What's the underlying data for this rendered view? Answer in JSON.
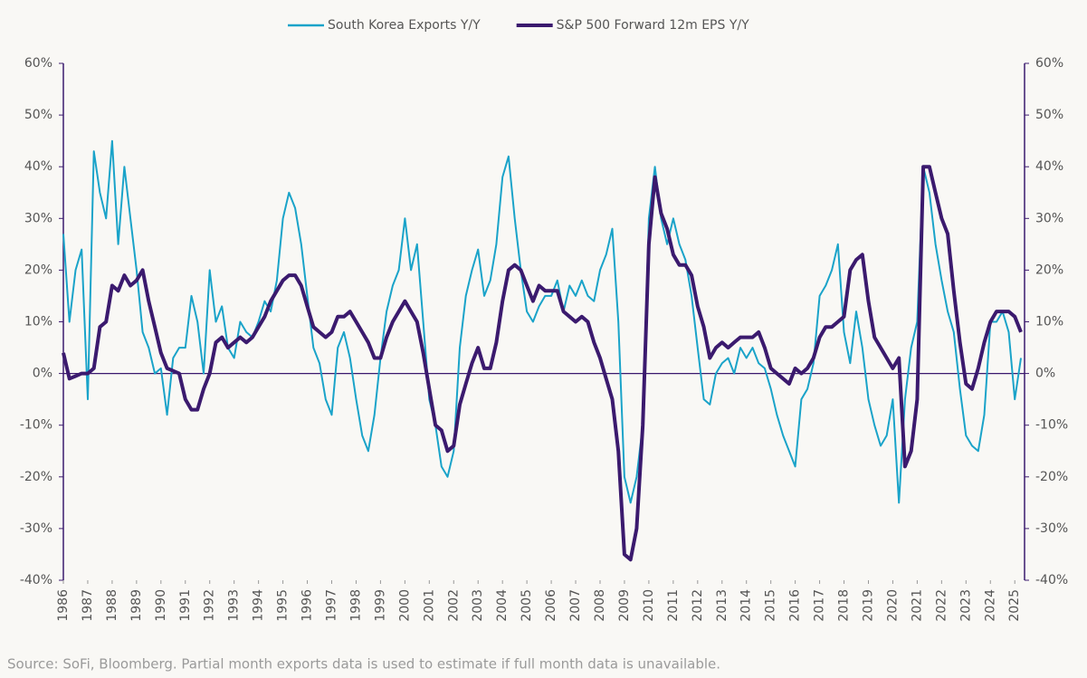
{
  "chart_data": {
    "type": "line",
    "source": "Source: SoFi, Bloomberg. Partial month exports data is used to estimate if full month data is unavailable.",
    "x": [
      1986,
      1986.25,
      1986.5,
      1986.75,
      1987,
      1987.25,
      1987.5,
      1987.75,
      1988,
      1988.25,
      1988.5,
      1988.75,
      1989,
      1989.25,
      1989.5,
      1989.75,
      1990,
      1990.25,
      1990.5,
      1990.75,
      1991,
      1991.25,
      1991.5,
      1991.75,
      1992,
      1992.25,
      1992.5,
      1992.75,
      1993,
      1993.25,
      1993.5,
      1993.75,
      1994,
      1994.25,
      1994.5,
      1994.75,
      1995,
      1995.25,
      1995.5,
      1995.75,
      1996,
      1996.25,
      1996.5,
      1996.75,
      1997,
      1997.25,
      1997.5,
      1997.75,
      1998,
      1998.25,
      1998.5,
      1998.75,
      1999,
      1999.25,
      1999.5,
      1999.75,
      2000,
      2000.25,
      2000.5,
      2000.75,
      2001,
      2001.25,
      2001.5,
      2001.75,
      2002,
      2002.25,
      2002.5,
      2002.75,
      2003,
      2003.25,
      2003.5,
      2003.75,
      2004,
      2004.25,
      2004.5,
      2004.75,
      2005,
      2005.25,
      2005.5,
      2005.75,
      2006,
      2006.25,
      2006.5,
      2006.75,
      2007,
      2007.25,
      2007.5,
      2007.75,
      2008,
      2008.25,
      2008.5,
      2008.75,
      2009,
      2009.25,
      2009.5,
      2009.75,
      2010,
      2010.25,
      2010.5,
      2010.75,
      2011,
      2011.25,
      2011.5,
      2011.75,
      2012,
      2012.25,
      2012.5,
      2012.75,
      2013,
      2013.25,
      2013.5,
      2013.75,
      2014,
      2014.25,
      2014.5,
      2014.75,
      2015,
      2015.25,
      2015.5,
      2015.75,
      2016,
      2016.25,
      2016.5,
      2016.75,
      2017,
      2017.25,
      2017.5,
      2017.75,
      2018,
      2018.25,
      2018.5,
      2018.75,
      2019,
      2019.25,
      2019.5,
      2019.75,
      2020,
      2020.25,
      2020.5,
      2020.75,
      2021,
      2021.25,
      2021.5,
      2021.75,
      2022,
      2022.25,
      2022.5,
      2022.75,
      2023,
      2023.25,
      2023.5,
      2023.75,
      2024,
      2024.25,
      2024.5,
      2024.75,
      2025,
      2025.25
    ],
    "series": [
      {
        "name": "South Korea Exports Y/Y",
        "color": "#1aa3c9",
        "values": [
          27,
          10,
          20,
          24,
          -5,
          43,
          35,
          30,
          45,
          25,
          40,
          30,
          20,
          8,
          5,
          0,
          1,
          -8,
          3,
          5,
          5,
          15,
          10,
          0,
          20,
          10,
          13,
          5,
          3,
          10,
          8,
          7,
          10,
          14,
          12,
          18,
          30,
          35,
          32,
          25,
          15,
          5,
          2,
          -5,
          -8,
          5,
          8,
          3,
          -5,
          -12,
          -15,
          -8,
          3,
          12,
          17,
          20,
          30,
          20,
          25,
          10,
          -5,
          -10,
          -18,
          -20,
          -15,
          5,
          15,
          20,
          24,
          15,
          18,
          25,
          38,
          42,
          30,
          20,
          12,
          10,
          13,
          15,
          15,
          18,
          12,
          17,
          15,
          18,
          15,
          14,
          20,
          23,
          28,
          10,
          -20,
          -25,
          -20,
          -10,
          30,
          40,
          30,
          25,
          30,
          25,
          22,
          15,
          5,
          -5,
          -6,
          0,
          2,
          3,
          0,
          5,
          3,
          5,
          2,
          1,
          -3,
          -8,
          -12,
          -15,
          -18,
          -5,
          -3,
          2,
          15,
          17,
          20,
          25,
          8,
          2,
          12,
          5,
          -5,
          -10,
          -14,
          -12,
          -5,
          -25,
          -5,
          5,
          10,
          40,
          35,
          25,
          18,
          12,
          8,
          -3,
          -12,
          -14,
          -15,
          -8,
          10,
          10,
          12,
          8,
          -5,
          3
        ]
      },
      {
        "name": "S&P 500 Forward 12m EPS Y/Y",
        "color": "#3b1a6e",
        "axis": "y2",
        "values": [
          4,
          -1,
          -0.5,
          0,
          0,
          1,
          9,
          10,
          17,
          16,
          19,
          17,
          18,
          20,
          14,
          9,
          4,
          1,
          0.5,
          0,
          -5,
          -7,
          -7,
          -3,
          0,
          6,
          7,
          5,
          6,
          7,
          6,
          7,
          9,
          11,
          14,
          16,
          18,
          19,
          19,
          17,
          13,
          9,
          8,
          7,
          8,
          11,
          11,
          12,
          10,
          8,
          6,
          3,
          3,
          7,
          10,
          12,
          14,
          12,
          10,
          4,
          -3,
          -10,
          -11,
          -15,
          -14,
          -6,
          -2,
          2,
          5,
          1,
          1,
          6,
          14,
          20,
          21,
          20,
          17,
          14,
          17,
          16,
          16,
          16,
          12,
          11,
          10,
          11,
          10,
          6,
          3,
          -1,
          -5,
          -15,
          -35,
          -36,
          -30,
          -10,
          25,
          38,
          31,
          28,
          23,
          21,
          21,
          19,
          13,
          9,
          3,
          5,
          6,
          5,
          6,
          7,
          7,
          7,
          8,
          5,
          1,
          0,
          -1,
          -2,
          1,
          0,
          1,
          3,
          7,
          9,
          9,
          10,
          11,
          20,
          22,
          23,
          14,
          7,
          5,
          3,
          1,
          3,
          -18,
          -15,
          -5,
          40,
          40,
          35,
          30,
          27,
          16,
          6,
          -2,
          -3,
          1,
          6,
          10,
          12,
          12,
          12,
          11,
          8
        ]
      }
    ],
    "xlim": [
      1986,
      2025.4
    ],
    "xticks": [
      1986,
      1987,
      1988,
      1989,
      1990,
      1991,
      1992,
      1993,
      1994,
      1995,
      1996,
      1997,
      1998,
      1999,
      2000,
      2001,
      2002,
      2003,
      2004,
      2005,
      2006,
      2007,
      2008,
      2009,
      2010,
      2011,
      2012,
      2013,
      2014,
      2015,
      2016,
      2017,
      2018,
      2019,
      2020,
      2021,
      2022,
      2023,
      2024,
      2025
    ],
    "ylim": [
      -40,
      60
    ],
    "yticks": [
      {
        "value": -40,
        "label": "-40%"
      },
      {
        "value": -30,
        "label": "-30%"
      },
      {
        "value": -20,
        "label": "-20%"
      },
      {
        "value": -10,
        "label": "-10%"
      },
      {
        "value": 0,
        "label": "0%"
      },
      {
        "value": 10,
        "label": "10%"
      },
      {
        "value": 20,
        "label": "20%"
      },
      {
        "value": 30,
        "label": "30%"
      },
      {
        "value": 40,
        "label": "40%"
      },
      {
        "value": 50,
        "label": "50%"
      },
      {
        "value": 60,
        "label": "60%"
      }
    ],
    "y2lim": [
      -40,
      60
    ],
    "y2ticks": [
      {
        "value": -40,
        "label": "-40%"
      },
      {
        "value": -30,
        "label": "-30%"
      },
      {
        "value": -20,
        "label": "-20%"
      },
      {
        "value": -10,
        "label": "-10%"
      },
      {
        "value": 0,
        "label": "0%"
      },
      {
        "value": 10,
        "label": "10%"
      },
      {
        "value": 20,
        "label": "20%"
      },
      {
        "value": 30,
        "label": "30%"
      },
      {
        "value": 40,
        "label": "40%"
      },
      {
        "value": 50,
        "label": "50%"
      },
      {
        "value": 60,
        "label": "60%"
      }
    ],
    "legend": "top"
  }
}
